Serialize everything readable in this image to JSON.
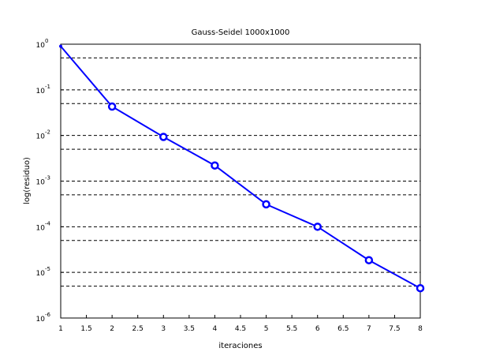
{
  "chart_data": {
    "type": "line",
    "title": "Gauss-Seidel 1000x1000",
    "xlabel": "iteraciones",
    "ylabel": "log(residuo)",
    "xlim": [
      1,
      8
    ],
    "ylim": [
      1e-06,
      1
    ],
    "y_scale": "log",
    "x_ticks": [
      "1",
      "1.5",
      "2",
      "2.5",
      "3",
      "3.5",
      "4",
      "4.5",
      "5",
      "5.5",
      "6",
      "6.5",
      "7",
      "7.5",
      "8"
    ],
    "y_ticks": [
      {
        "base": "10",
        "exp": "0"
      },
      {
        "base": "10",
        "exp": "-1"
      },
      {
        "base": "10",
        "exp": "-2"
      },
      {
        "base": "10",
        "exp": "-3"
      },
      {
        "base": "10",
        "exp": "-4"
      },
      {
        "base": "10",
        "exp": "-5"
      },
      {
        "base": "10",
        "exp": "-6"
      }
    ],
    "grid": "horizontal-dashed",
    "series": [
      {
        "color": "#0000ff",
        "marker": "circle",
        "x": [
          1,
          2,
          3,
          4,
          5,
          6,
          7,
          8
        ],
        "y": [
          0.9,
          0.043,
          0.0093,
          0.0022,
          0.00031,
          0.0001,
          1.85e-05,
          4.5e-06
        ]
      }
    ]
  }
}
